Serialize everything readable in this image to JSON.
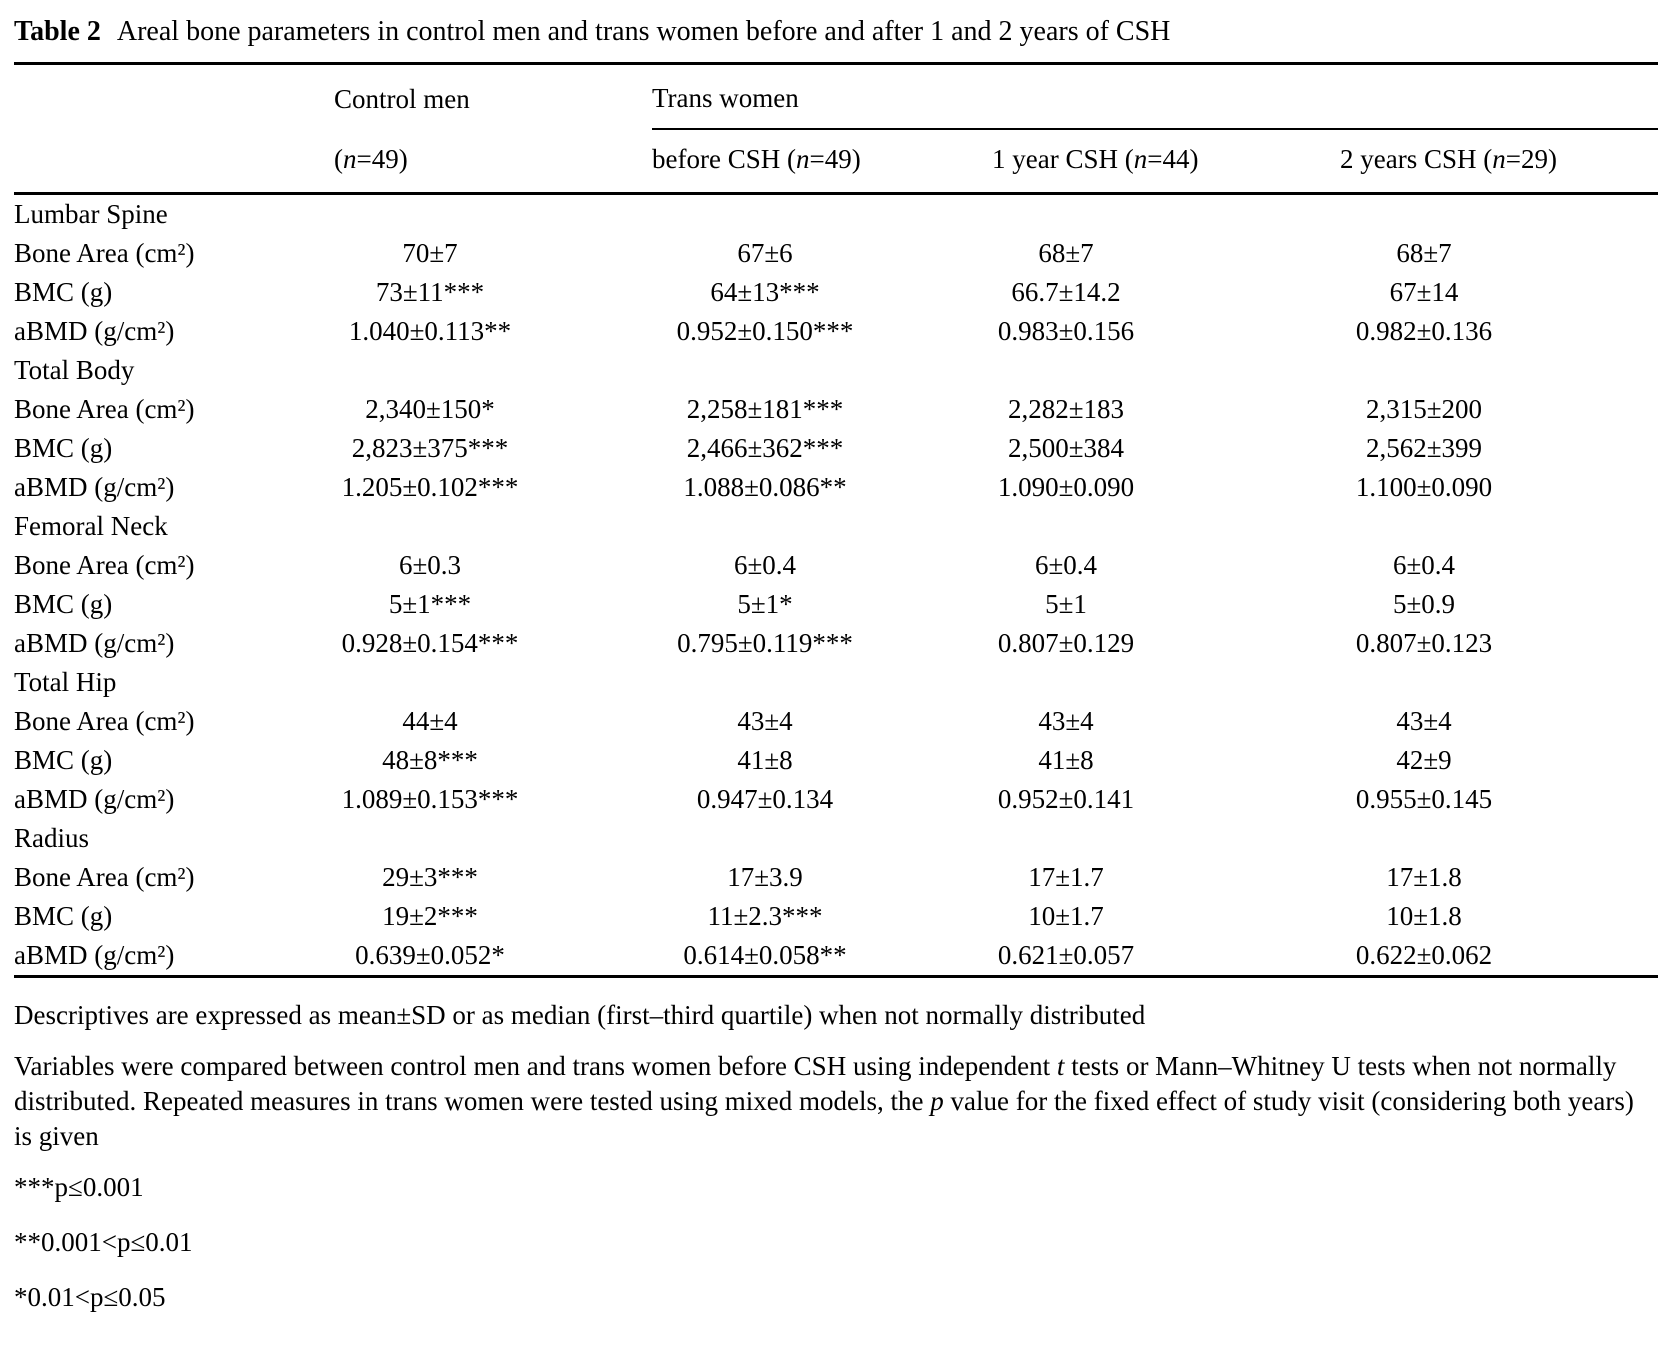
{
  "title": {
    "label": "Table 2",
    "text": "Areal bone parameters in control men and trans women before and after 1 and 2 years of CSH"
  },
  "header": {
    "control_group": "Control men",
    "trans_group": "Trans women",
    "control_sub": [
      {
        "text": "("
      },
      {
        "text": "n",
        "italic": true
      },
      {
        "text": "=49)"
      }
    ],
    "trans_subs": {
      "before": [
        {
          "text": "before CSH ("
        },
        {
          "text": "n",
          "italic": true
        },
        {
          "text": "=49)"
        }
      ],
      "year1": [
        {
          "text": "1 year CSH ("
        },
        {
          "text": "n",
          "italic": true
        },
        {
          "text": "=44)"
        }
      ],
      "year2": [
        {
          "text": "2 years CSH ("
        },
        {
          "text": "n",
          "italic": true
        },
        {
          "text": "=29)"
        }
      ]
    }
  },
  "sections": [
    {
      "name": "Lumbar Spine",
      "rows": [
        {
          "label": "Bone Area (cm²)",
          "values": [
            "70±7",
            "67±6",
            "68±7",
            "68±7"
          ]
        },
        {
          "label": "BMC (g)",
          "values": [
            "73±11***",
            "64±13***",
            "66.7±14.2",
            "67±14"
          ]
        },
        {
          "label": "aBMD (g/cm²)",
          "values": [
            "1.040±0.113**",
            "0.952±0.150***",
            "0.983±0.156",
            "0.982±0.136"
          ]
        }
      ]
    },
    {
      "name": "Total Body",
      "rows": [
        {
          "label": "Bone Area (cm²)",
          "values": [
            "2,340±150*",
            "2,258±181***",
            "2,282±183",
            "2,315±200"
          ]
        },
        {
          "label": "BMC (g)",
          "values": [
            "2,823±375***",
            "2,466±362***",
            "2,500±384",
            "2,562±399"
          ]
        },
        {
          "label": "aBMD (g/cm²)",
          "values": [
            "1.205±0.102***",
            "1.088±0.086**",
            "1.090±0.090",
            "1.100±0.090"
          ]
        }
      ]
    },
    {
      "name": "Femoral Neck",
      "rows": [
        {
          "label": "Bone Area (cm²)",
          "values": [
            "6±0.3",
            "6±0.4",
            "6±0.4",
            "6±0.4"
          ]
        },
        {
          "label": "BMC (g)",
          "values": [
            "5±1***",
            "5±1*",
            "5±1",
            "5±0.9"
          ]
        },
        {
          "label": "aBMD (g/cm²)",
          "values": [
            "0.928±0.154***",
            "0.795±0.119***",
            "0.807±0.129",
            "0.807±0.123"
          ]
        }
      ]
    },
    {
      "name": "Total Hip",
      "rows": [
        {
          "label": "Bone Area (cm²)",
          "values": [
            "44±4",
            "43±4",
            "43±4",
            "43±4"
          ]
        },
        {
          "label": "BMC (g)",
          "values": [
            "48±8***",
            "41±8",
            "41±8",
            "42±9"
          ]
        },
        {
          "label": "aBMD (g/cm²)",
          "values": [
            "1.089±0.153***",
            "0.947±0.134",
            "0.952±0.141",
            "0.955±0.145"
          ]
        }
      ]
    },
    {
      "name": "Radius",
      "rows": [
        {
          "label": "Bone Area (cm²)",
          "values": [
            "29±3***",
            "17±3.9",
            "17±1.7",
            "17±1.8"
          ]
        },
        {
          "label": "BMC (g)",
          "values": [
            "19±2***",
            "11±2.3***",
            "10±1.7",
            "10±1.8"
          ]
        },
        {
          "label": "aBMD (g/cm²)",
          "values": [
            "0.639±0.052*",
            "0.614±0.058**",
            "0.621±0.057",
            "0.622±0.062"
          ]
        }
      ]
    }
  ],
  "footnotes": {
    "descriptives": [
      {
        "text": "Descriptives are expressed as mean±SD or as median (first–third quartile) when not normally distributed"
      }
    ],
    "methods": [
      {
        "text": "Variables were compared between control men and trans women before CSH using independent "
      },
      {
        "text": "t",
        "italic": true
      },
      {
        "text": " tests or Mann–Whitney U tests when not normally distributed. Repeated measures in trans women were tested using mixed models, the "
      },
      {
        "text": "p",
        "italic": true
      },
      {
        "text": " value for the fixed effect of study visit (considering both years) is given"
      }
    ],
    "sig3": [
      {
        "text": "***p≤0.001"
      }
    ],
    "sig2": [
      {
        "text": "**0.001<p≤0.01"
      }
    ],
    "sig1": [
      {
        "text": "*0.01<p≤0.05"
      }
    ]
  }
}
